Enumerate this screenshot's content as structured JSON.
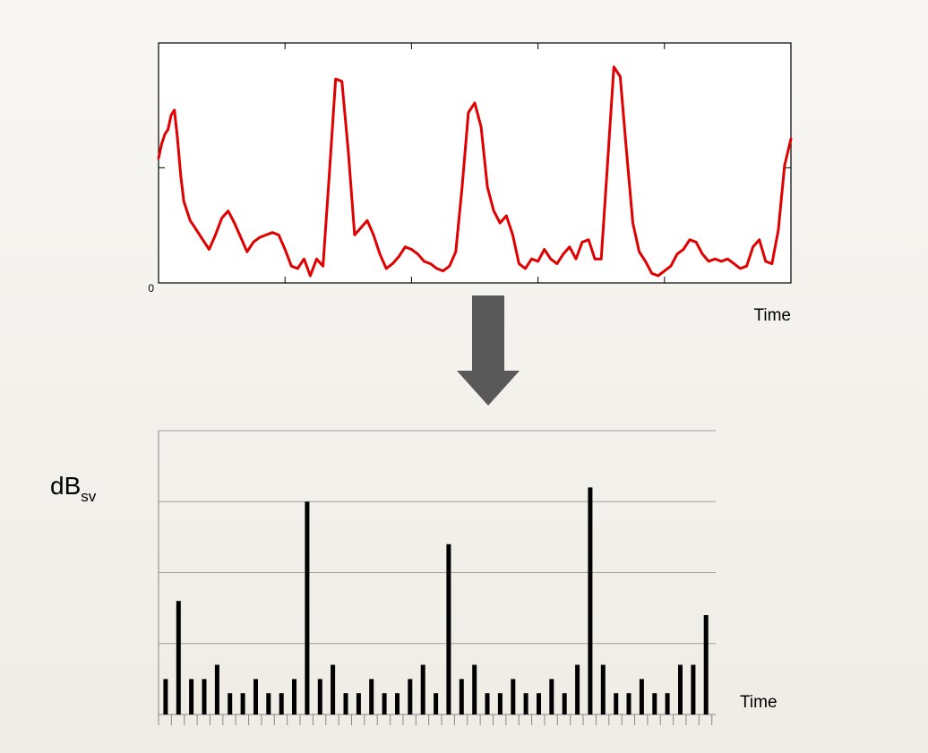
{
  "chart_data": [
    {
      "type": "line",
      "xlabel": "Time",
      "ylabel": "",
      "origin_label": "0",
      "xlim": [
        0,
        100
      ],
      "ylim": [
        0,
        100
      ],
      "colors": {
        "line": "#e00000"
      },
      "grid": false,
      "series": [
        {
          "x": [
            0.0,
            0.5,
            1.0,
            1.5,
            2.0,
            2.5,
            3.0,
            3.5,
            4.0,
            5.0,
            6.0,
            7.0,
            8.0,
            9.0,
            10.0,
            11.0,
            12.0,
            13.0,
            14.0,
            15.0,
            16.0,
            17.0,
            18.0,
            19.0,
            20.0,
            21.0,
            22.0,
            23.0,
            24.0,
            25.0,
            26.0,
            27.0,
            28.0,
            29.0,
            30.0,
            31.0,
            32.0,
            33.0,
            34.0,
            35.0,
            36.0,
            37.0,
            38.0,
            39.0,
            40.0,
            41.0,
            42.0,
            43.0,
            44.0,
            45.0,
            46.0,
            47.0,
            48.0,
            49.0,
            50.0,
            51.0,
            52.0,
            53.0,
            54.0,
            55.0,
            56.0,
            57.0,
            58.0,
            59.0,
            60.0,
            61.0,
            62.0,
            63.0,
            64.0,
            65.0,
            66.0,
            67.0,
            68.0,
            69.0,
            70.0,
            71.0,
            72.0,
            73.0,
            74.0,
            75.0,
            76.0,
            77.0,
            78.0,
            79.0,
            80.0,
            81.0,
            82.0,
            83.0,
            84.0,
            85.0,
            86.0,
            87.0,
            88.0,
            89.0,
            90.0,
            91.0,
            92.0,
            93.0,
            94.0,
            95.0,
            96.0,
            97.0,
            98.0,
            99.0,
            100.0
          ],
          "y": [
            52,
            58,
            62,
            64,
            70,
            72,
            60,
            45,
            34,
            26,
            22,
            18,
            14,
            20,
            27,
            30,
            25,
            19,
            13,
            17,
            19,
            20,
            21,
            20,
            14,
            7,
            6,
            10,
            3,
            10,
            7,
            45,
            85,
            84,
            55,
            20,
            23,
            26,
            20,
            12,
            6,
            8,
            11,
            15,
            14,
            12,
            9,
            8,
            6,
            5,
            7,
            13,
            40,
            71,
            75,
            65,
            40,
            30,
            25,
            28,
            20,
            8,
            6,
            10,
            9,
            14,
            10,
            8,
            12,
            15,
            10,
            17,
            18,
            10,
            10,
            50,
            90,
            86,
            55,
            25,
            13,
            9,
            4,
            3,
            5,
            7,
            12,
            14,
            18,
            17,
            12,
            9,
            10,
            9,
            10,
            8,
            6,
            7,
            15,
            18,
            9,
            8,
            22,
            49,
            60
          ]
        }
      ]
    },
    {
      "type": "bar",
      "ylabel": "dB",
      "ylabel_sub": "sv",
      "xlabel": "Time",
      "ylim": [
        0,
        4
      ],
      "grid": true,
      "colors": {
        "bar": "#000000",
        "grid": "#a0a0a0",
        "axis": "#888888"
      },
      "values": [
        0.5,
        1.6,
        0.5,
        0.5,
        0.7,
        0.3,
        0.3,
        0.5,
        0.3,
        0.3,
        0.5,
        3.0,
        0.5,
        0.7,
        0.3,
        0.3,
        0.5,
        0.3,
        0.3,
        0.5,
        0.7,
        0.3,
        2.4,
        0.5,
        0.7,
        0.3,
        0.3,
        0.5,
        0.3,
        0.3,
        0.5,
        0.3,
        0.7,
        3.2,
        0.7,
        0.3,
        0.3,
        0.5,
        0.3,
        0.3,
        0.7,
        0.7,
        1.4
      ]
    }
  ]
}
